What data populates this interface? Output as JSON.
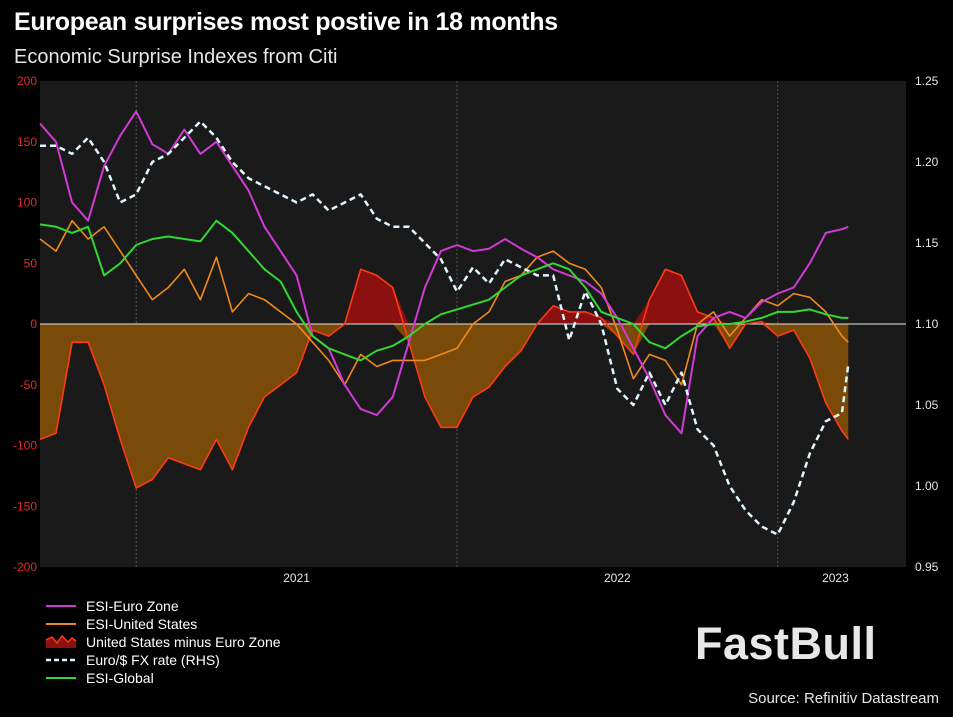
{
  "header": {
    "title": "European surprises most postive in 18 months",
    "subtitle": "Economic Surprise Indexes from Citi"
  },
  "colors": {
    "euro_zone": "#d23ad6",
    "united_states": "#f08a1c",
    "diff_positive": "#8b1010",
    "diff_negative": "#7a4a08",
    "diff_line": "#ff3a18",
    "fx": "#dff6ff",
    "global": "#33d633",
    "plot_bg": "#1a1a1a",
    "grid": "#555555"
  },
  "logo": {
    "text": "FastBull"
  },
  "source": "Source: Refinitiv Datastream",
  "chart_data": {
    "type": "line",
    "title": "European surprises most postive in 18 months",
    "subtitle": "Economic Surprise Indexes from Citi",
    "x_range": [
      2020.2,
      2022.9
    ],
    "xticks": [
      {
        "value": 2021.0,
        "label": "2021"
      },
      {
        "value": 2022.0,
        "label": "2022"
      },
      {
        "value": 2022.68,
        "label": "2023"
      }
    ],
    "year_gridlines": [
      2020.5,
      2021.5,
      2022.5
    ],
    "y_left": {
      "range": [
        -200,
        200
      ],
      "ticks": [
        "-200",
        "-150",
        "-100",
        "-50",
        "0",
        "50",
        "100",
        "150",
        "200"
      ]
    },
    "y_right": {
      "range": [
        0.95,
        1.25
      ],
      "ticks": [
        "0.95",
        "1.00",
        "1.05",
        "1.10",
        "1.15",
        "1.20",
        "1.25"
      ],
      "label": "Euro/$ FX rate (RHS)"
    },
    "legend_position": "bottom-left",
    "series": [
      {
        "name": "ESI-Euro Zone",
        "axis": "left",
        "x": [
          2020.2,
          2020.25,
          2020.3,
          2020.35,
          2020.4,
          2020.45,
          2020.5,
          2020.55,
          2020.6,
          2020.65,
          2020.7,
          2020.75,
          2020.8,
          2020.85,
          2020.9,
          2020.95,
          2021.0,
          2021.05,
          2021.1,
          2021.15,
          2021.2,
          2021.25,
          2021.3,
          2021.35,
          2021.4,
          2021.45,
          2021.5,
          2021.55,
          2021.6,
          2021.65,
          2021.7,
          2021.75,
          2021.8,
          2021.85,
          2021.9,
          2021.95,
          2022.0,
          2022.05,
          2022.1,
          2022.15,
          2022.2,
          2022.25,
          2022.3,
          2022.35,
          2022.4,
          2022.45,
          2022.5,
          2022.55,
          2022.6,
          2022.65,
          2022.7,
          2022.72
        ],
        "values": [
          165,
          150,
          100,
          85,
          130,
          155,
          175,
          148,
          140,
          160,
          140,
          150,
          130,
          110,
          80,
          60,
          40,
          -10,
          -20,
          -50,
          -70,
          -75,
          -60,
          -15,
          30,
          60,
          65,
          60,
          62,
          70,
          62,
          55,
          45,
          40,
          35,
          25,
          5,
          -20,
          -45,
          -75,
          -90,
          -10,
          5,
          10,
          5,
          18,
          25,
          30,
          50,
          75,
          78,
          80
        ]
      },
      {
        "name": "ESI-United States",
        "axis": "left",
        "x": [
          2020.2,
          2020.25,
          2020.3,
          2020.35,
          2020.4,
          2020.45,
          2020.5,
          2020.55,
          2020.6,
          2020.65,
          2020.7,
          2020.75,
          2020.8,
          2020.85,
          2020.9,
          2020.95,
          2021.0,
          2021.05,
          2021.1,
          2021.15,
          2021.2,
          2021.25,
          2021.3,
          2021.35,
          2021.4,
          2021.45,
          2021.5,
          2021.55,
          2021.6,
          2021.65,
          2021.7,
          2021.75,
          2021.8,
          2021.85,
          2021.9,
          2021.95,
          2022.0,
          2022.05,
          2022.1,
          2022.15,
          2022.2,
          2022.25,
          2022.3,
          2022.35,
          2022.4,
          2022.45,
          2022.5,
          2022.55,
          2022.6,
          2022.65,
          2022.7,
          2022.72
        ],
        "values": [
          70,
          60,
          85,
          70,
          80,
          60,
          40,
          20,
          30,
          45,
          20,
          55,
          10,
          25,
          20,
          10,
          0,
          -15,
          -30,
          -50,
          -25,
          -35,
          -30,
          -30,
          -30,
          -25,
          -20,
          0,
          10,
          35,
          40,
          55,
          60,
          50,
          45,
          30,
          -5,
          -45,
          -25,
          -30,
          -50,
          0,
          10,
          -10,
          5,
          20,
          15,
          25,
          22,
          10,
          -10,
          -15
        ]
      },
      {
        "name": "United States minus Euro Zone",
        "axis": "left",
        "x": [
          2020.2,
          2020.25,
          2020.3,
          2020.35,
          2020.4,
          2020.45,
          2020.5,
          2020.55,
          2020.6,
          2020.65,
          2020.7,
          2020.75,
          2020.8,
          2020.85,
          2020.9,
          2020.95,
          2021.0,
          2021.05,
          2021.1,
          2021.15,
          2021.2,
          2021.25,
          2021.3,
          2021.35,
          2021.4,
          2021.45,
          2021.5,
          2021.55,
          2021.6,
          2021.65,
          2021.7,
          2021.75,
          2021.8,
          2021.85,
          2021.9,
          2021.95,
          2022.0,
          2022.05,
          2022.1,
          2022.15,
          2022.2,
          2022.25,
          2022.3,
          2022.35,
          2022.4,
          2022.45,
          2022.5,
          2022.55,
          2022.6,
          2022.65,
          2022.7,
          2022.72
        ],
        "values": [
          -95,
          -90,
          -15,
          -15,
          -50,
          -95,
          -135,
          -128,
          -110,
          -115,
          -120,
          -95,
          -120,
          -85,
          -60,
          -50,
          -40,
          -5,
          -10,
          0,
          45,
          40,
          30,
          -15,
          -60,
          -85,
          -85,
          -60,
          -52,
          -35,
          -22,
          0,
          15,
          10,
          10,
          5,
          -10,
          -25,
          20,
          45,
          40,
          10,
          5,
          -20,
          0,
          2,
          -10,
          -5,
          -28,
          -65,
          -88,
          -95
        ]
      },
      {
        "name": "Euro/$ FX rate (RHS)",
        "axis": "right",
        "x": [
          2020.2,
          2020.25,
          2020.3,
          2020.35,
          2020.4,
          2020.45,
          2020.5,
          2020.55,
          2020.6,
          2020.65,
          2020.7,
          2020.75,
          2020.8,
          2020.85,
          2020.9,
          2020.95,
          2021.0,
          2021.05,
          2021.1,
          2021.15,
          2021.2,
          2021.25,
          2021.3,
          2021.35,
          2021.4,
          2021.45,
          2021.5,
          2021.55,
          2021.6,
          2021.65,
          2021.7,
          2021.75,
          2021.8,
          2021.85,
          2021.9,
          2021.95,
          2022.0,
          2022.05,
          2022.1,
          2022.15,
          2022.2,
          2022.25,
          2022.3,
          2022.35,
          2022.4,
          2022.45,
          2022.5,
          2022.55,
          2022.6,
          2022.65,
          2022.7,
          2022.72
        ],
        "values": [
          1.21,
          1.21,
          1.205,
          1.215,
          1.2,
          1.175,
          1.18,
          1.2,
          1.205,
          1.215,
          1.225,
          1.215,
          1.2,
          1.19,
          1.185,
          1.18,
          1.175,
          1.18,
          1.17,
          1.175,
          1.18,
          1.165,
          1.16,
          1.16,
          1.15,
          1.14,
          1.12,
          1.135,
          1.125,
          1.14,
          1.135,
          1.13,
          1.13,
          1.09,
          1.12,
          1.1,
          1.06,
          1.05,
          1.07,
          1.05,
          1.07,
          1.035,
          1.025,
          1.0,
          0.985,
          0.975,
          0.97,
          0.99,
          1.02,
          1.04,
          1.045,
          1.075
        ]
      },
      {
        "name": "ESI-Global",
        "axis": "left",
        "x": [
          2020.2,
          2020.25,
          2020.3,
          2020.35,
          2020.4,
          2020.45,
          2020.5,
          2020.55,
          2020.6,
          2020.65,
          2020.7,
          2020.75,
          2020.8,
          2020.85,
          2020.9,
          2020.95,
          2021.0,
          2021.05,
          2021.1,
          2021.15,
          2021.2,
          2021.25,
          2021.3,
          2021.35,
          2021.4,
          2021.45,
          2021.5,
          2021.55,
          2021.6,
          2021.65,
          2021.7,
          2021.75,
          2021.8,
          2021.85,
          2021.9,
          2021.95,
          2022.0,
          2022.05,
          2022.1,
          2022.15,
          2022.2,
          2022.25,
          2022.3,
          2022.35,
          2022.4,
          2022.45,
          2022.5,
          2022.55,
          2022.6,
          2022.65,
          2022.7,
          2022.72
        ],
        "values": [
          82,
          80,
          75,
          80,
          40,
          50,
          65,
          70,
          72,
          70,
          68,
          85,
          75,
          60,
          45,
          35,
          10,
          -10,
          -20,
          -25,
          -30,
          -22,
          -18,
          -10,
          0,
          8,
          12,
          16,
          20,
          30,
          40,
          45,
          50,
          45,
          30,
          10,
          5,
          0,
          -15,
          -20,
          -10,
          -2,
          0,
          0,
          2,
          5,
          10,
          10,
          12,
          8,
          5,
          5
        ]
      }
    ]
  }
}
